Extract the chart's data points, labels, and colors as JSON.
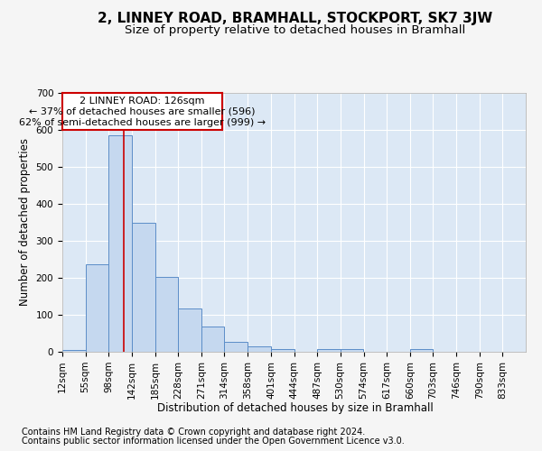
{
  "title": "2, LINNEY ROAD, BRAMHALL, STOCKPORT, SK7 3JW",
  "subtitle": "Size of property relative to detached houses in Bramhall",
  "xlabel": "Distribution of detached houses by size in Bramhall",
  "ylabel": "Number of detached properties",
  "footer_line1": "Contains HM Land Registry data © Crown copyright and database right 2024.",
  "footer_line2": "Contains public sector information licensed under the Open Government Licence v3.0.",
  "annotation_line1": "2 LINNEY ROAD: 126sqm",
  "annotation_line2": "← 37% of detached houses are smaller (596)",
  "annotation_line3": "62% of semi-detached houses are larger (999) →",
  "bar_edges": [
    12,
    55,
    98,
    142,
    185,
    228,
    271,
    314,
    358,
    401,
    444,
    487,
    530,
    574,
    617,
    660,
    703,
    746,
    790,
    833,
    876
  ],
  "bar_heights": [
    5,
    237,
    585,
    347,
    202,
    118,
    68,
    26,
    14,
    8,
    0,
    8,
    8,
    0,
    0,
    7,
    0,
    0,
    0,
    0
  ],
  "bar_color": "#c5d8ef",
  "bar_edge_color": "#5b8dc8",
  "property_size": 126,
  "property_line_color": "#cc0000",
  "ylim": [
    0,
    700
  ],
  "yticks": [
    0,
    100,
    200,
    300,
    400,
    500,
    600,
    700
  ],
  "fig_bg_color": "#f5f5f5",
  "plot_bg_color": "#dce8f5",
  "grid_color": "#ffffff",
  "title_fontsize": 11,
  "subtitle_fontsize": 9.5,
  "axis_label_fontsize": 8.5,
  "tick_fontsize": 7.5,
  "annotation_fontsize": 8,
  "footer_fontsize": 7
}
